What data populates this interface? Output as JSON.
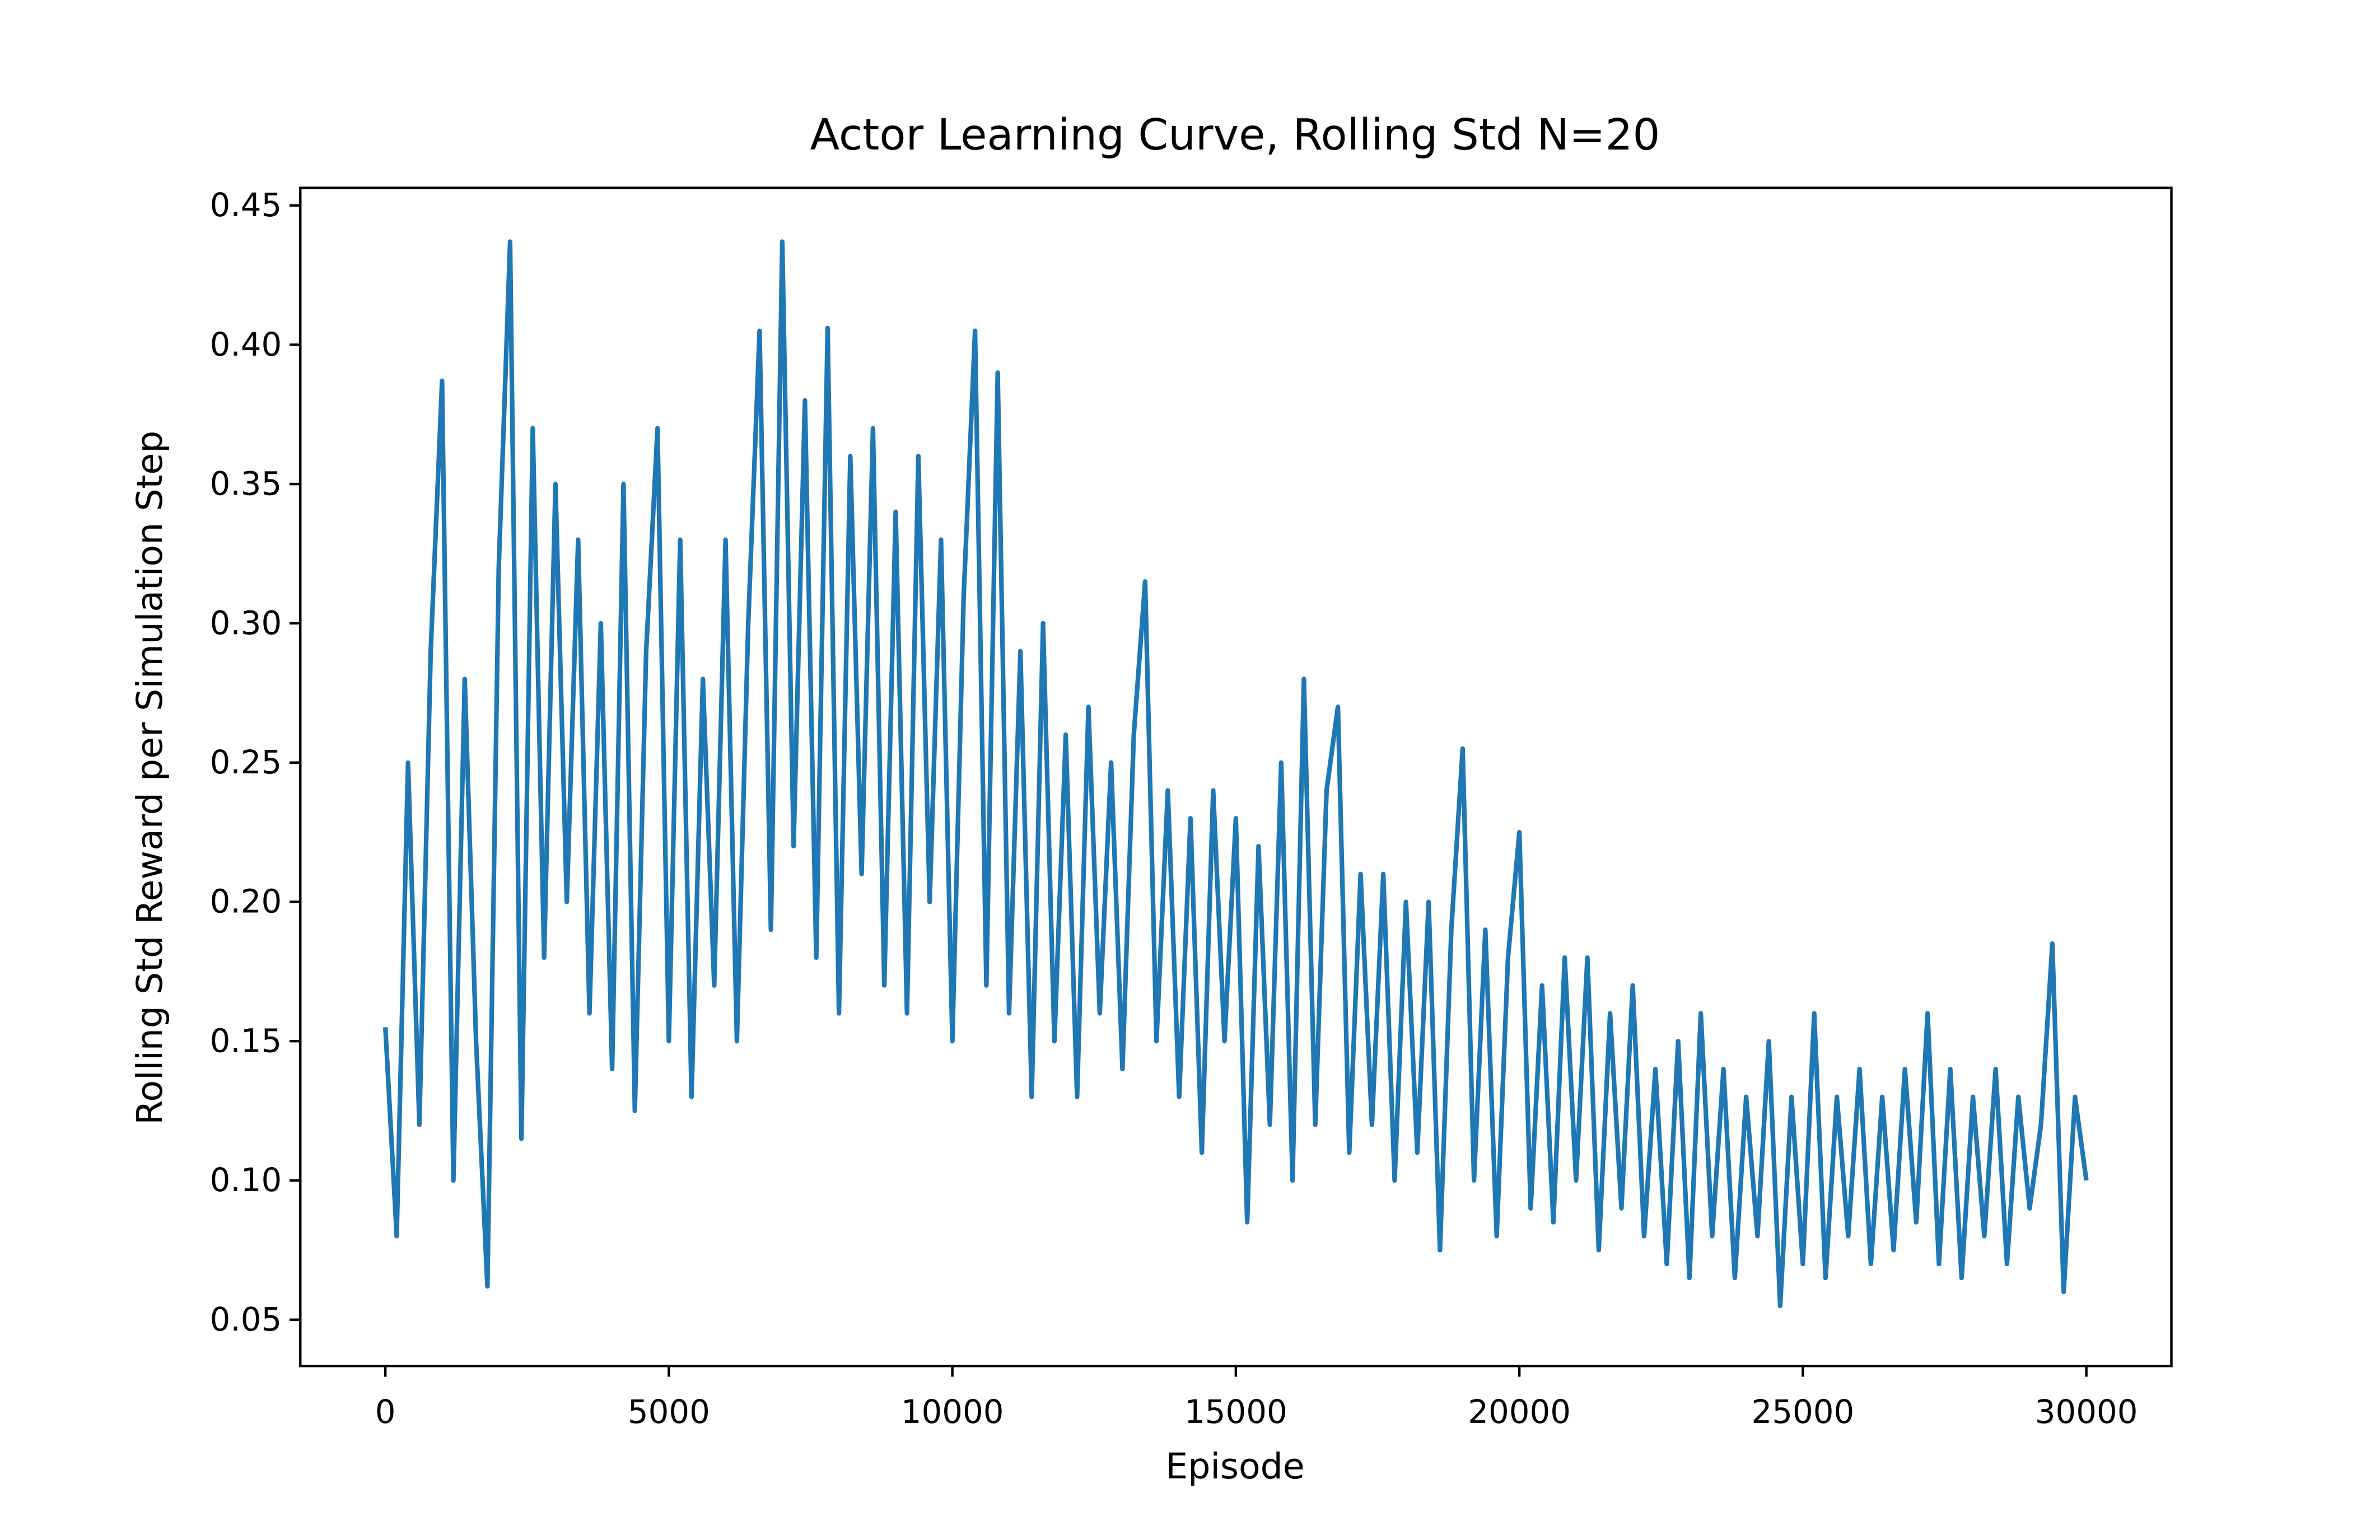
{
  "chart_data": {
    "type": "line",
    "title": "Actor Learning Curve, Rolling Std N=20",
    "x_label": "Episode",
    "y_label": "Rolling Std Reward per Simulation Step",
    "x": [
      0,
      200,
      400,
      600,
      800,
      1000,
      1200,
      1400,
      1600,
      1800,
      2000,
      2200,
      2400,
      2600,
      2800,
      3000,
      3200,
      3400,
      3600,
      3800,
      4000,
      4200,
      4400,
      4600,
      4800,
      5000,
      5200,
      5400,
      5600,
      5800,
      6000,
      6200,
      6400,
      6600,
      6800,
      7000,
      7200,
      7400,
      7600,
      7800,
      8000,
      8200,
      8400,
      8600,
      8800,
      9000,
      9200,
      9400,
      9600,
      9800,
      10000,
      10200,
      10400,
      10600,
      10800,
      11000,
      11200,
      11400,
      11600,
      11800,
      12000,
      12200,
      12400,
      12600,
      12800,
      13000,
      13200,
      13400,
      13600,
      13800,
      14000,
      14200,
      14400,
      14600,
      14800,
      15000,
      15200,
      15400,
      15600,
      15800,
      16000,
      16200,
      16400,
      16600,
      16800,
      17000,
      17200,
      17400,
      17600,
      17800,
      18000,
      18200,
      18400,
      18600,
      18800,
      19000,
      19200,
      19400,
      19600,
      19800,
      20000,
      20200,
      20400,
      20600,
      20800,
      21000,
      21200,
      21400,
      21600,
      21800,
      22000,
      22200,
      22400,
      22600,
      22800,
      23000,
      23200,
      23400,
      23600,
      23800,
      24000,
      24200,
      24400,
      24600,
      24800,
      25000,
      25200,
      25400,
      25600,
      25800,
      26000,
      26200,
      26400,
      26600,
      26800,
      27000,
      27200,
      27400,
      27600,
      27800,
      28000,
      28200,
      28400,
      28600,
      28800,
      29000,
      29200,
      29400,
      29600,
      29800,
      30000
    ],
    "series": [
      {
        "color": "#1f77b4",
        "values": [
          0.155,
          0.08,
          0.25,
          0.12,
          0.29,
          0.387,
          0.1,
          0.28,
          0.15,
          0.062,
          0.32,
          0.437,
          0.115,
          0.37,
          0.18,
          0.35,
          0.2,
          0.33,
          0.16,
          0.3,
          0.14,
          0.35,
          0.125,
          0.29,
          0.37,
          0.15,
          0.33,
          0.13,
          0.28,
          0.17,
          0.33,
          0.15,
          0.3,
          0.405,
          0.19,
          0.437,
          0.22,
          0.38,
          0.18,
          0.406,
          0.16,
          0.36,
          0.21,
          0.37,
          0.17,
          0.34,
          0.16,
          0.36,
          0.2,
          0.33,
          0.15,
          0.31,
          0.405,
          0.17,
          0.39,
          0.16,
          0.29,
          0.13,
          0.3,
          0.15,
          0.26,
          0.13,
          0.27,
          0.16,
          0.25,
          0.14,
          0.26,
          0.315,
          0.15,
          0.24,
          0.13,
          0.23,
          0.11,
          0.24,
          0.15,
          0.23,
          0.085,
          0.22,
          0.12,
          0.25,
          0.1,
          0.28,
          0.12,
          0.24,
          0.27,
          0.11,
          0.21,
          0.12,
          0.21,
          0.1,
          0.2,
          0.11,
          0.2,
          0.075,
          0.19,
          0.255,
          0.1,
          0.19,
          0.08,
          0.18,
          0.225,
          0.09,
          0.17,
          0.085,
          0.18,
          0.1,
          0.18,
          0.075,
          0.16,
          0.09,
          0.17,
          0.08,
          0.14,
          0.07,
          0.15,
          0.065,
          0.16,
          0.08,
          0.14,
          0.065,
          0.13,
          0.08,
          0.15,
          0.055,
          0.13,
          0.07,
          0.16,
          0.065,
          0.13,
          0.08,
          0.14,
          0.07,
          0.13,
          0.075,
          0.14,
          0.085,
          0.16,
          0.07,
          0.14,
          0.065,
          0.13,
          0.08,
          0.14,
          0.07,
          0.13,
          0.09,
          0.12,
          0.185,
          0.06,
          0.13,
          0.1
        ]
      }
    ],
    "xlim": [
      -1500,
      31500
    ],
    "ylim": [
      0.0334,
      0.4563
    ],
    "xticks": [
      0,
      5000,
      10000,
      15000,
      20000,
      25000,
      30000
    ],
    "yticks": [
      0.05,
      {
        "value": 0.1,
        "label": "0.10"
      },
      0.15,
      {
        "value": 0.2,
        "label": "0.20"
      },
      0.25,
      {
        "value": 0.3,
        "label": "0.30"
      },
      0.35,
      {
        "value": 0.4,
        "label": "0.40"
      },
      0.45
    ],
    "grid": false
  }
}
